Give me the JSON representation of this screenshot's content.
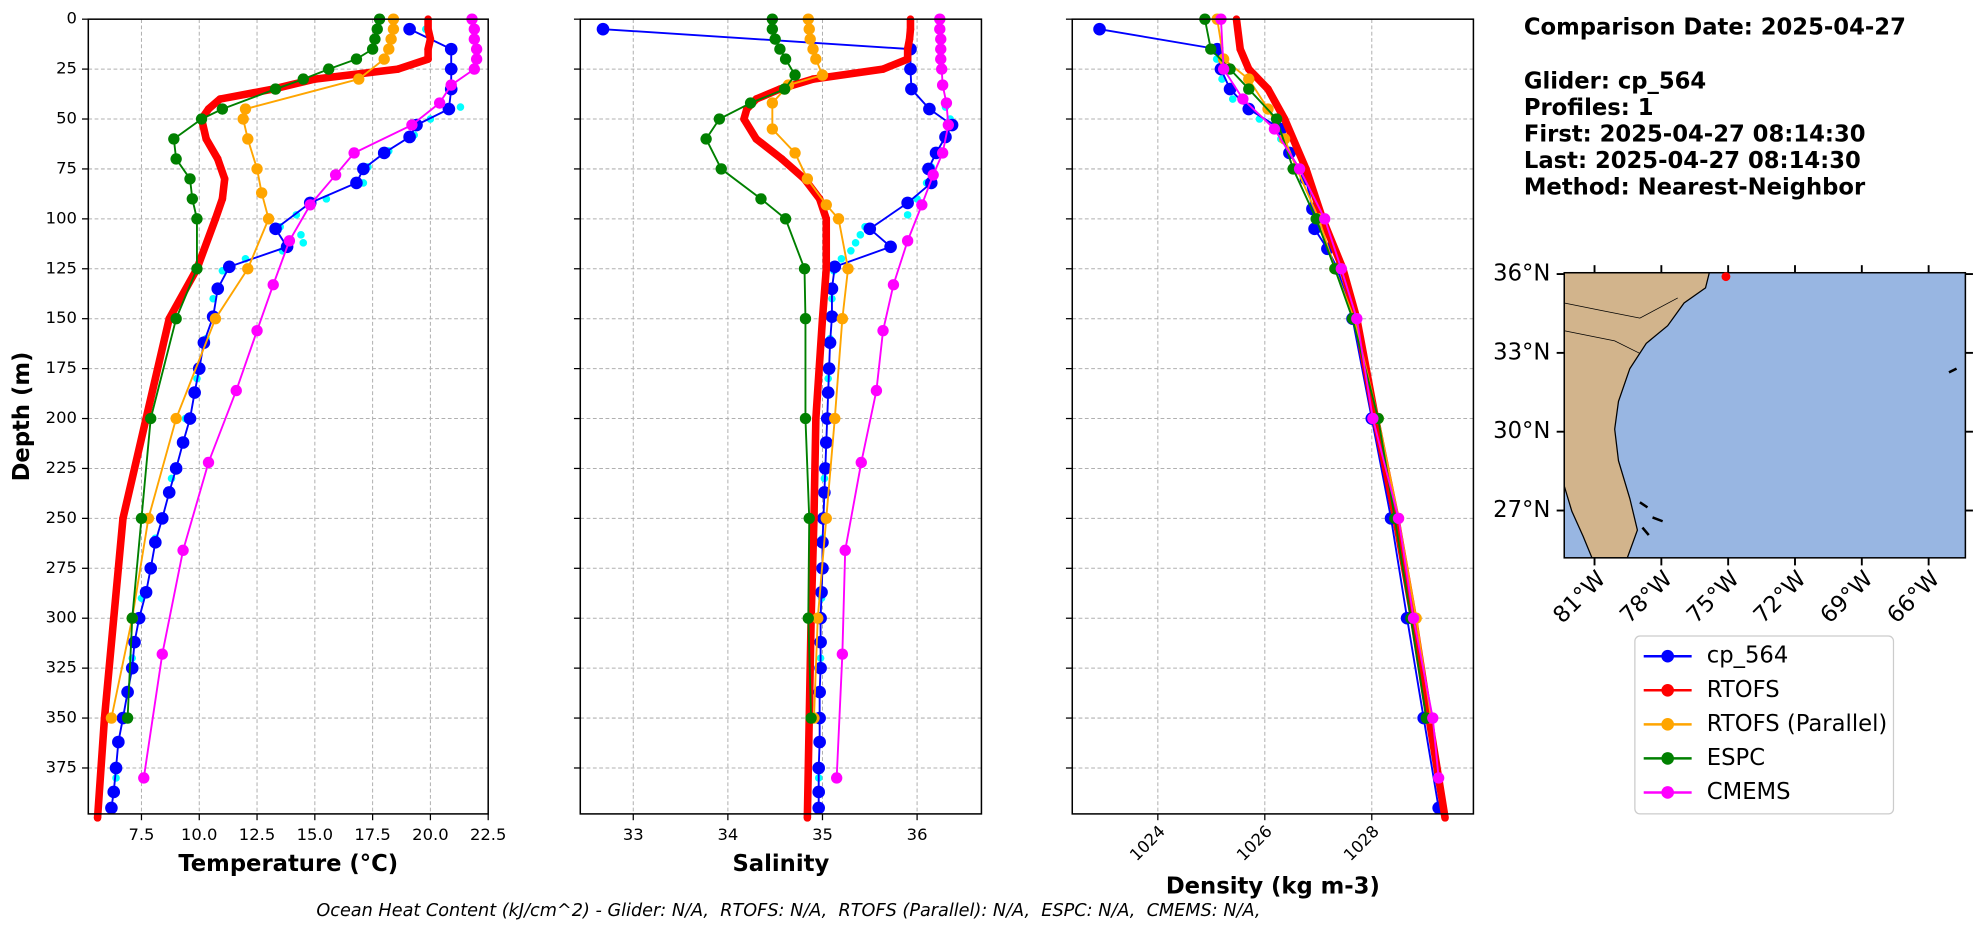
{
  "chart_data": [
    {
      "type": "profile",
      "xlabel": "Temperature (°C)",
      "ylabel": "Depth (m)",
      "y_inverted": true,
      "grid": true,
      "ytick_labels": true,
      "xlim": [
        5.2,
        22.5
      ],
      "ylim": [
        0,
        398
      ],
      "xticks": [
        7.5,
        {
          "value": 10,
          "label": "10.0"
        },
        12.5,
        {
          "value": 15,
          "label": "15.0"
        },
        17.5,
        {
          "value": 20,
          "label": "20.0"
        },
        22.5
      ],
      "yticks": [
        0,
        25,
        50,
        75,
        100,
        125,
        150,
        175,
        200,
        225,
        250,
        275,
        300,
        325,
        350,
        375
      ],
      "series": [
        {
          "color": "#00ffff",
          "depth": [
            5,
            15,
            25,
            35,
            44,
            50,
            58,
            66,
            74,
            82,
            90,
            98,
            104,
            108,
            112,
            116,
            120,
            126,
            140,
            160,
            180,
            200,
            230,
            260,
            290,
            320,
            350,
            380
          ],
          "values": [
            19.8,
            21.0,
            21.0,
            21.0,
            21.3,
            20.0,
            19.3,
            18.2,
            17.3,
            17.1,
            15.5,
            14.2,
            13.5,
            14.4,
            14.5,
            13.6,
            12.0,
            11.0,
            10.6,
            10.3,
            9.9,
            9.4,
            8.8,
            8.1,
            7.5,
            7.1,
            6.8,
            6.4
          ]
        },
        {
          "name": "cp_564",
          "color": "#0000ff",
          "depth": [
            5,
            15,
            25,
            35,
            45,
            53,
            59,
            67,
            75,
            82,
            92,
            105,
            114,
            124,
            135,
            149,
            162,
            175,
            187,
            200,
            212,
            225,
            237,
            250,
            262,
            275,
            287,
            300,
            312,
            325,
            337,
            350,
            362,
            375,
            387,
            395
          ],
          "values": [
            19.1,
            20.9,
            20.9,
            20.9,
            20.8,
            19.4,
            19.1,
            18.0,
            17.1,
            16.8,
            14.8,
            13.3,
            13.8,
            11.3,
            10.8,
            10.6,
            10.2,
            10.0,
            9.8,
            9.6,
            9.3,
            9.0,
            8.7,
            8.4,
            8.1,
            7.9,
            7.7,
            7.4,
            7.2,
            7.1,
            6.9,
            6.7,
            6.5,
            6.4,
            6.3,
            6.2
          ]
        },
        {
          "name": "RTOFS",
          "color": "#ff0000",
          "depth": [
            0,
            5,
            10,
            15,
            20,
            25,
            30,
            35,
            40,
            45,
            50,
            60,
            70,
            80,
            90,
            100,
            125,
            150,
            200,
            250,
            300,
            350,
            400
          ],
          "values": [
            19.9,
            19.9,
            20.0,
            19.9,
            19.9,
            18.6,
            15.0,
            13.2,
            10.9,
            10.4,
            10.1,
            10.3,
            10.8,
            11.1,
            11.0,
            10.7,
            9.9,
            8.7,
            7.7,
            6.7,
            6.3,
            5.9,
            5.6
          ]
        },
        {
          "name": "RTOFS (Parallel)",
          "color": "#ffa500",
          "depth": [
            0,
            5,
            10,
            15,
            20,
            30,
            45,
            50,
            60,
            75,
            87,
            100,
            125,
            150,
            200,
            250,
            300,
            350
          ],
          "values": [
            18.4,
            18.4,
            18.3,
            18.2,
            18.0,
            16.9,
            12.0,
            11.9,
            12.1,
            12.5,
            12.7,
            13.0,
            12.1,
            10.7,
            9.0,
            7.8,
            7.1,
            6.2
          ]
        },
        {
          "name": "ESPC",
          "color": "#008000",
          "depth": [
            0,
            5,
            10,
            15,
            20,
            25,
            30,
            35,
            45,
            50,
            60,
            70,
            80,
            90,
            100,
            125,
            150,
            200,
            250,
            300,
            350
          ],
          "values": [
            17.8,
            17.7,
            17.6,
            17.5,
            16.8,
            15.6,
            14.5,
            13.3,
            11.0,
            10.1,
            8.9,
            9.0,
            9.6,
            9.7,
            9.9,
            9.9,
            9.0,
            7.9,
            7.5,
            7.1,
            6.9
          ]
        },
        {
          "name": "CMEMS",
          "color": "#ff00ff",
          "depth": [
            0,
            5,
            10,
            15,
            20,
            25,
            33,
            42,
            53,
            67,
            78,
            93,
            111,
            133,
            156,
            186,
            222,
            266,
            318,
            380
          ],
          "values": [
            21.8,
            21.9,
            21.9,
            22.0,
            22.0,
            21.9,
            20.9,
            20.4,
            19.2,
            16.7,
            15.9,
            14.8,
            13.9,
            13.2,
            12.5,
            11.6,
            10.4,
            9.3,
            8.4,
            7.6
          ]
        }
      ]
    },
    {
      "type": "profile",
      "xlabel": "Salinity",
      "y_inverted": true,
      "grid": true,
      "ytick_labels": false,
      "xlim": [
        32.44,
        36.68
      ],
      "ylim": [
        0,
        398
      ],
      "xticks": [
        33,
        34,
        35,
        36
      ],
      "yticks": [
        0,
        25,
        50,
        75,
        100,
        125,
        150,
        175,
        200,
        225,
        250,
        275,
        300,
        325,
        350,
        375
      ],
      "series": [
        {
          "color": "#00ffff",
          "depth": [
            5,
            15,
            25,
            35,
            44,
            50,
            58,
            66,
            74,
            82,
            90,
            98,
            104,
            108,
            112,
            116,
            120,
            126,
            140,
            160,
            180,
            200,
            230,
            260,
            290,
            320,
            350,
            380
          ],
          "values": [
            32.7,
            35.95,
            35.95,
            35.96,
            36.3,
            36.35,
            36.3,
            36.25,
            36.15,
            36.1,
            36.0,
            35.9,
            35.45,
            35.4,
            35.35,
            35.3,
            35.2,
            35.12,
            35.1,
            35.08,
            35.06,
            35.04,
            35.02,
            35.0,
            34.99,
            34.98,
            34.97,
            34.96
          ]
        },
        {
          "color": "#0000ff",
          "depth": [
            5,
            15,
            25,
            35,
            45,
            53,
            59,
            67,
            75,
            82,
            92,
            105,
            114,
            124,
            135,
            149,
            162,
            175,
            187,
            200,
            212,
            225,
            237,
            250,
            262,
            275,
            287,
            300,
            312,
            325,
            337,
            350,
            362,
            375,
            387,
            395
          ],
          "values": [
            32.68,
            35.93,
            35.93,
            35.94,
            36.13,
            36.37,
            36.3,
            36.2,
            36.12,
            36.15,
            35.9,
            35.5,
            35.72,
            35.13,
            35.1,
            35.1,
            35.08,
            35.07,
            35.06,
            35.05,
            35.04,
            35.03,
            35.02,
            35.01,
            35.0,
            35.0,
            34.99,
            34.98,
            34.98,
            34.98,
            34.97,
            34.97,
            34.97,
            34.96,
            34.96,
            34.96
          ]
        },
        {
          "color": "#ff0000",
          "depth": [
            0,
            5,
            10,
            15,
            20,
            25,
            30,
            35,
            40,
            45,
            50,
            60,
            70,
            80,
            90,
            100,
            125,
            150,
            200,
            250,
            300,
            350,
            400
          ],
          "values": [
            35.93,
            35.93,
            35.92,
            35.9,
            35.9,
            35.64,
            34.9,
            34.55,
            34.3,
            34.2,
            34.17,
            34.3,
            34.57,
            34.81,
            34.97,
            35.04,
            35.04,
            35.0,
            34.93,
            34.91,
            34.88,
            34.86,
            34.84
          ]
        },
        {
          "color": "#ffa500",
          "depth": [
            0,
            5,
            10,
            15,
            20,
            28,
            33,
            42,
            55,
            67,
            80,
            93,
            100,
            125,
            150,
            200,
            250,
            300,
            350
          ],
          "values": [
            34.85,
            34.86,
            34.87,
            34.9,
            34.93,
            35.0,
            34.64,
            34.47,
            34.47,
            34.71,
            34.84,
            35.04,
            35.17,
            35.27,
            35.21,
            35.13,
            35.04,
            34.95,
            34.91
          ]
        },
        {
          "color": "#008000",
          "depth": [
            0,
            5,
            10,
            15,
            20,
            28,
            35,
            42,
            50,
            60,
            75,
            90,
            100,
            125,
            150,
            200,
            250,
            300,
            350
          ],
          "values": [
            34.47,
            34.47,
            34.5,
            34.55,
            34.61,
            34.71,
            34.6,
            34.24,
            33.91,
            33.77,
            33.93,
            34.35,
            34.61,
            34.81,
            34.82,
            34.82,
            34.86,
            34.85,
            34.88
          ]
        },
        {
          "color": "#ff00ff",
          "depth": [
            0,
            5,
            10,
            15,
            20,
            25,
            33,
            42,
            53,
            67,
            78,
            93,
            111,
            133,
            156,
            186,
            222,
            266,
            318,
            380
          ],
          "values": [
            36.24,
            36.24,
            36.25,
            36.25,
            36.25,
            36.26,
            36.27,
            36.31,
            36.33,
            36.27,
            36.17,
            36.05,
            35.9,
            35.75,
            35.64,
            35.57,
            35.41,
            35.24,
            35.21,
            35.15
          ]
        }
      ]
    },
    {
      "type": "profile",
      "xlabel": "Density (kg m-3)",
      "y_inverted": true,
      "grid": true,
      "ytick_labels": false,
      "xtick_rotation": 45,
      "xlim": [
        1022.4,
        1029.9
      ],
      "ylim": [
        0,
        398
      ],
      "xticks": [
        1024,
        1026,
        1028
      ],
      "yticks": [
        0,
        25,
        50,
        75,
        100,
        125,
        150,
        175,
        200,
        225,
        250,
        275,
        300,
        325,
        350,
        375
      ],
      "series": [
        {
          "color": "#00ffff",
          "depth": [
            20,
            30,
            40,
            50,
            60
          ],
          "values": [
            1025.1,
            1025.2,
            1025.4,
            1025.9,
            1026.3
          ]
        },
        {
          "color": "#0000ff",
          "depth": [
            5,
            15,
            25,
            35,
            45,
            55,
            67,
            80,
            95,
            105,
            115,
            125,
            150,
            200,
            250,
            300,
            350,
            395
          ],
          "values": [
            1022.91,
            1025.11,
            1025.18,
            1025.35,
            1025.7,
            1026.3,
            1026.46,
            1026.77,
            1026.89,
            1026.93,
            1027.17,
            1027.36,
            1027.64,
            1028.0,
            1028.36,
            1028.66,
            1028.97,
            1029.25
          ]
        },
        {
          "color": "#ff0000",
          "depth": [
            0,
            15,
            25,
            35,
            50,
            75,
            100,
            125,
            150,
            200,
            250,
            300,
            350,
            400
          ],
          "values": [
            1025.47,
            1025.54,
            1025.7,
            1026.06,
            1026.37,
            1026.77,
            1027.08,
            1027.46,
            1027.72,
            1028.07,
            1028.45,
            1028.78,
            1029.07,
            1029.37
          ]
        },
        {
          "color": "#ffa500",
          "depth": [
            0,
            20,
            30,
            45,
            60,
            75,
            100,
            125,
            150,
            200,
            250,
            300,
            350
          ],
          "values": [
            1025.11,
            1025.23,
            1025.7,
            1026.06,
            1026.37,
            1026.6,
            1027.01,
            1027.31,
            1027.67,
            1028.12,
            1028.5,
            1028.83,
            1029.11
          ]
        },
        {
          "color": "#008000",
          "depth": [
            0,
            15,
            25,
            35,
            50,
            75,
            100,
            125,
            150,
            200,
            250,
            300,
            350
          ],
          "values": [
            1024.88,
            1024.99,
            1025.35,
            1025.7,
            1026.22,
            1026.53,
            1026.96,
            1027.31,
            1027.64,
            1028.12,
            1028.43,
            1028.73,
            1029.02
          ]
        },
        {
          "color": "#ff00ff",
          "depth": [
            0,
            25,
            40,
            55,
            75,
            100,
            125,
            150,
            200,
            250,
            300,
            350,
            380
          ],
          "values": [
            1025.18,
            1025.23,
            1025.59,
            1026.18,
            1026.65,
            1027.12,
            1027.43,
            1027.72,
            1028.02,
            1028.5,
            1028.78,
            1029.14,
            1029.25
          ]
        }
      ]
    },
    {
      "type": "map",
      "xlim": [
        -82.36,
        -64.35
      ],
      "ylim": [
        25.2,
        36.05
      ],
      "xticks": [
        {
          "value": -81,
          "label": "81°W"
        },
        {
          "value": -78,
          "label": "78°W"
        },
        {
          "value": -75,
          "label": "75°W"
        },
        {
          "value": -72,
          "label": "72°W"
        },
        {
          "value": -69,
          "label": "69°W"
        },
        {
          "value": -66,
          "label": "66°W"
        }
      ],
      "yticks": [
        {
          "value": 27,
          "label": "27°N"
        },
        {
          "value": 30,
          "label": "30°N"
        },
        {
          "value": 33,
          "label": "33°N"
        },
        {
          "value": 36,
          "label": "36°N"
        }
      ],
      "point": {
        "lon": -75.1,
        "lat": 35.9,
        "color": "#ff0000"
      }
    }
  ],
  "info": [
    "Comparison Date: 2025-04-27",
    "Glider: cp_564",
    "Profiles: 1",
    "First: 2025-04-27 08:14:30",
    "Last: 2025-04-27 08:14:30",
    "Method: Nearest-Neighbor"
  ],
  "footer": "Ocean Heat Content (kJ/cm^2) - Glider: N/A,  RTOFS: N/A,  RTOFS (Parallel): N/A,  ESPC: N/A,  CMEMS: N/A,"
}
